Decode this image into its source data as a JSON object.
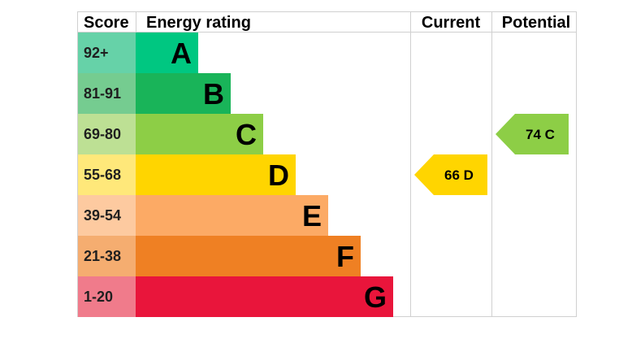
{
  "chart_data": {
    "type": "bar",
    "headers": {
      "score": "Score",
      "energy_rating": "Energy rating",
      "current": "Current",
      "potential": "Potential"
    },
    "bands": [
      {
        "score": "92+",
        "letter": "A",
        "color": "#00c781",
        "score_bg": "#66d2a8"
      },
      {
        "score": "81-91",
        "letter": "B",
        "color": "#19b459",
        "score_bg": "#75cc90"
      },
      {
        "score": "69-80",
        "letter": "C",
        "color": "#8dce46",
        "score_bg": "#bde094"
      },
      {
        "score": "55-68",
        "letter": "D",
        "color": "#ffd500",
        "score_bg": "#ffe87a"
      },
      {
        "score": "39-54",
        "letter": "E",
        "color": "#fcaa65",
        "score_bg": "#fdcaa0"
      },
      {
        "score": "21-38",
        "letter": "F",
        "color": "#ef8023",
        "score_bg": "#f5ad70"
      },
      {
        "score": "1-20",
        "letter": "G",
        "color": "#e9153b",
        "score_bg": "#f07b8b"
      }
    ],
    "current": {
      "value": 66,
      "letter": "D",
      "label": "66 D",
      "color": "#ffd500"
    },
    "potential": {
      "value": 74,
      "letter": "C",
      "label": "74 C",
      "color": "#8dce46"
    }
  }
}
